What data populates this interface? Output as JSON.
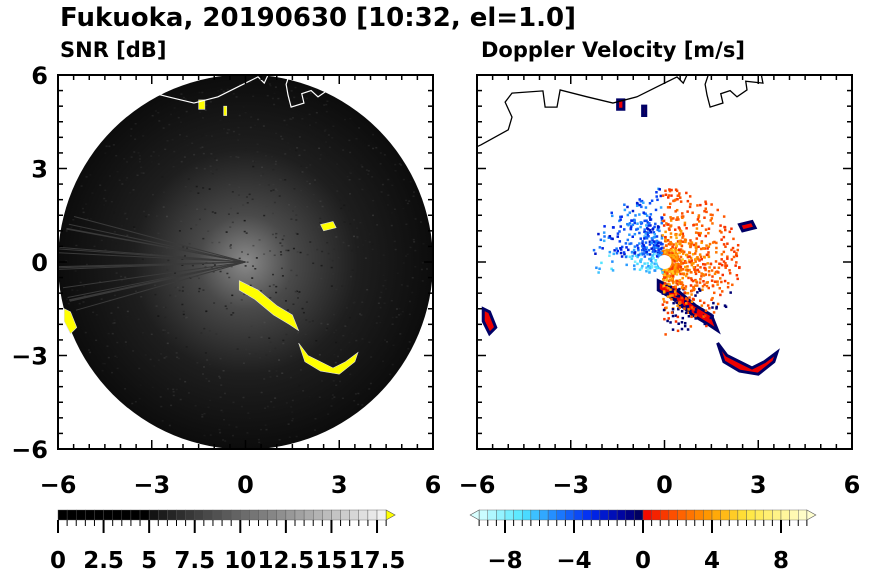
{
  "title": "Fukuoka, 20190630 [10:32, el=1.0]",
  "chart_data": [
    {
      "type": "heatmap",
      "title": "SNR [dB]",
      "xlim": [
        -6,
        6
      ],
      "ylim": [
        -6,
        6
      ],
      "xticks": [
        "−6",
        "−3",
        "0",
        "3",
        "6"
      ],
      "yticks": [
        "6",
        "3",
        "0",
        "−3",
        "−6"
      ],
      "colorbar": {
        "min": 0,
        "max": 18,
        "step": 0.5,
        "ticks": [
          "0",
          "2.5",
          "5",
          "7.5",
          "10",
          "12.5",
          "15",
          "17.5"
        ],
        "tick_values": [
          0,
          2.5,
          5,
          7.5,
          10,
          12.5,
          15,
          17.5
        ],
        "over_color": "#ffff00"
      },
      "range_radius": 6,
      "strong_echo_regions": [
        {
          "name": "southeast-clutter",
          "points": [
            [
              -0.2,
              -0.6
            ],
            [
              0.4,
              -0.9
            ],
            [
              1.0,
              -1.4
            ],
            [
              1.5,
              -1.7
            ],
            [
              1.7,
              -2.2
            ],
            [
              1.4,
              -2.0
            ],
            [
              0.9,
              -1.7
            ],
            [
              0.3,
              -1.2
            ],
            [
              -0.2,
              -0.9
            ]
          ]
        },
        {
          "name": "sea-clutter-arc",
          "points": [
            [
              1.7,
              -2.6
            ],
            [
              2.0,
              -3.0
            ],
            [
              2.4,
              -3.2
            ],
            [
              2.8,
              -3.4
            ],
            [
              3.2,
              -3.2
            ],
            [
              3.6,
              -2.9
            ],
            [
              3.5,
              -3.2
            ],
            [
              3.0,
              -3.6
            ],
            [
              2.4,
              -3.5
            ],
            [
              1.9,
              -3.2
            ]
          ]
        },
        {
          "name": "west-echo",
          "points": [
            [
              -5.8,
              -1.5
            ],
            [
              -5.6,
              -1.6
            ],
            [
              -5.4,
              -2.1
            ],
            [
              -5.6,
              -2.3
            ],
            [
              -5.8,
              -1.9
            ]
          ]
        },
        {
          "name": "northeast-echo",
          "points": [
            [
              2.4,
              1.2
            ],
            [
              2.8,
              1.3
            ],
            [
              2.9,
              1.1
            ],
            [
              2.5,
              1.0
            ]
          ]
        },
        {
          "name": "north-echo-a",
          "points": [
            [
              -1.5,
              5.2
            ],
            [
              -1.3,
              5.2
            ],
            [
              -1.3,
              4.9
            ],
            [
              -1.5,
              4.9
            ]
          ]
        },
        {
          "name": "north-echo-b",
          "points": [
            [
              -0.7,
              5.0
            ],
            [
              -0.6,
              5.0
            ],
            [
              -0.6,
              4.7
            ],
            [
              -0.7,
              4.7
            ]
          ]
        }
      ]
    },
    {
      "type": "heatmap",
      "title": "Doppler Velocity [m/s]",
      "xlim": [
        -6,
        6
      ],
      "ylim": [
        -6,
        6
      ],
      "xticks": [
        "−6",
        "−3",
        "0",
        "3",
        "6"
      ],
      "colorbar": {
        "min": -9.5,
        "max": 9.5,
        "step": 0.5,
        "ticks": [
          "−8",
          "−4",
          "0",
          "4",
          "8"
        ],
        "tick_values": [
          -8,
          -4,
          0,
          4,
          8
        ],
        "under_color": "#d8ffff",
        "over_color": "#ffffd0"
      }
    }
  ],
  "coastline": [
    [
      [
        -6,
        3.7
      ],
      [
        -5.87,
        3.76
      ],
      [
        -5.0,
        4.24
      ],
      [
        -4.88,
        4.65
      ],
      [
        -5.1,
        5.13
      ],
      [
        -4.88,
        5.42
      ],
      [
        -3.89,
        5.49
      ],
      [
        -3.82,
        4.97
      ],
      [
        -3.44,
        4.97
      ],
      [
        -3.34,
        5.52
      ],
      [
        -2.48,
        5.3
      ],
      [
        -1.65,
        5.1
      ],
      [
        -0.88,
        5.3
      ],
      [
        -0.24,
        5.62
      ],
      [
        0.4,
        5.94
      ],
      [
        0.6,
        5.74
      ],
      [
        0.72,
        6.0
      ]
    ],
    [
      [
        1.4,
        6.0
      ],
      [
        1.3,
        5.7
      ],
      [
        1.36,
        5.36
      ],
      [
        1.46,
        4.97
      ],
      [
        1.87,
        5.1
      ],
      [
        1.8,
        5.4
      ],
      [
        2.1,
        5.5
      ],
      [
        2.32,
        5.3
      ],
      [
        2.64,
        5.52
      ],
      [
        2.6,
        5.8
      ],
      [
        3.15,
        5.74
      ],
      [
        3.1,
        6.0
      ]
    ]
  ],
  "colors": {
    "coast_left": "#ffffff",
    "coast_right": "#000000",
    "snr_over": "#ffff00"
  }
}
